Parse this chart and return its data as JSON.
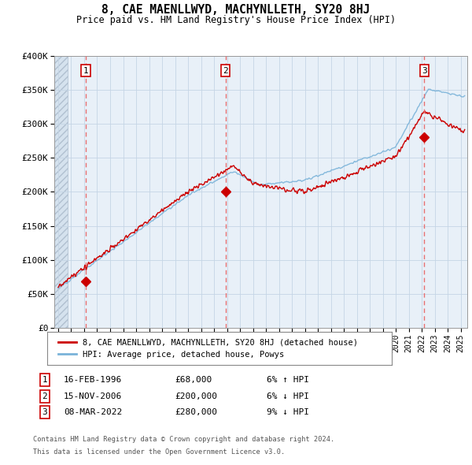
{
  "title": "8, CAE MAENLLWYD, MACHYNLLETH, SY20 8HJ",
  "subtitle": "Price paid vs. HM Land Registry's House Price Index (HPI)",
  "xlim_start": 1993.7,
  "xlim_end": 2025.5,
  "ylim": [
    0,
    400000
  ],
  "yticks": [
    0,
    50000,
    100000,
    150000,
    200000,
    250000,
    300000,
    350000,
    400000
  ],
  "ytick_labels": [
    "£0",
    "£50K",
    "£100K",
    "£150K",
    "£200K",
    "£250K",
    "£300K",
    "£350K",
    "£400K"
  ],
  "sale_dates": [
    1996.12,
    2006.88,
    2022.18
  ],
  "sale_prices": [
    68000,
    200000,
    280000
  ],
  "sale_labels": [
    "1",
    "2",
    "3"
  ],
  "legend_line1": "8, CAE MAENLLWYD, MACHYNLLETH, SY20 8HJ (detached house)",
  "legend_line2": "HPI: Average price, detached house, Powys",
  "table_rows": [
    {
      "num": "1",
      "date": "16-FEB-1996",
      "price": "£68,000",
      "hpi": "6% ↑ HPI"
    },
    {
      "num": "2",
      "date": "15-NOV-2006",
      "price": "£200,000",
      "hpi": "6% ↓ HPI"
    },
    {
      "num": "3",
      "date": "08-MAR-2022",
      "price": "£280,000",
      "hpi": "9% ↓ HPI"
    }
  ],
  "footer1": "Contains HM Land Registry data © Crown copyright and database right 2024.",
  "footer2": "This data is licensed under the Open Government Licence v3.0.",
  "hpi_color": "#7ab3d9",
  "price_color": "#cc0000",
  "dashed_color": "#e87070",
  "background_plot": "#e8f0f8",
  "background_hatch": "#d5e2ee",
  "grid_color": "#c5d5e5"
}
